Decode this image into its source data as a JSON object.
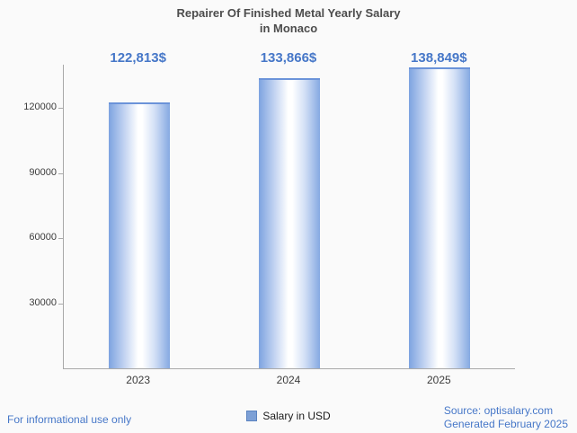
{
  "title": {
    "line1": "Repairer Of Finished Metal Yearly Salary",
    "line2": "in Monaco"
  },
  "chart_data": {
    "type": "bar",
    "categories": [
      "2023",
      "2024",
      "2025"
    ],
    "values": [
      122813,
      133866,
      138849
    ],
    "value_labels": [
      "122,813$",
      "133,866$",
      "138,849$"
    ],
    "series_name": "Salary in USD",
    "xlabel": "",
    "ylabel": "",
    "ylim": [
      0,
      140000
    ],
    "yticks": [
      30000,
      60000,
      90000,
      120000
    ],
    "grid": false,
    "legend_position": "bottom-center",
    "bar_color": "#7da0d6",
    "value_label_color": "#4677c8"
  },
  "legend": {
    "label": "Salary in USD",
    "swatch_color": "#7da0d6"
  },
  "footer": {
    "left": "For informational use only",
    "source": "Source: optisalary.com",
    "generated": "Generated February 2025"
  },
  "colors": {
    "accent_blue": "#4677c8",
    "title_gray": "#4d4d4d",
    "axis_gray": "#a9a9a9",
    "background": "#fafafa"
  }
}
